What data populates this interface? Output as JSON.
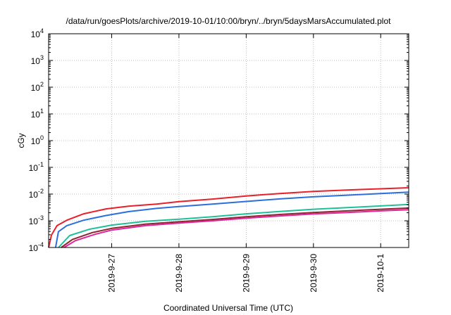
{
  "chart_data": {
    "type": "line",
    "title": "/data/run/goesPlots/archive/2019-10-01/10:00/bryn/../bryn/5daysMarsAccumulated.plot",
    "xlabel": "Coordinated Universal Time (UTC)",
    "ylabel": "cGy",
    "x_type": "date",
    "xlim": [
      "2019-09-26T01:30",
      "2019-10-01T10:00"
    ],
    "x_ticks": [
      {
        "value": "2019-09-27T00:00",
        "label": "2019-9-27"
      },
      {
        "value": "2019-09-28T00:00",
        "label": "2019-9-28"
      },
      {
        "value": "2019-09-29T00:00",
        "label": "2019-9-29"
      },
      {
        "value": "2019-09-30T00:00",
        "label": "2019-9-30"
      },
      {
        "value": "2019-10-01T00:00",
        "label": "2019-10-1"
      }
    ],
    "y_scale": "log",
    "ylim": [
      0.0001,
      10000
    ],
    "y_ticks": [
      {
        "value": 0.0001,
        "base": "10",
        "exp": "-4"
      },
      {
        "value": 0.001,
        "base": "10",
        "exp": "-3"
      },
      {
        "value": 0.01,
        "base": "10",
        "exp": "-2"
      },
      {
        "value": 0.1,
        "base": "10",
        "exp": "-1"
      },
      {
        "value": 1,
        "base": "10",
        "exp": "0"
      },
      {
        "value": 10,
        "base": "10",
        "exp": "1"
      },
      {
        "value": 100,
        "base": "10",
        "exp": "2"
      },
      {
        "value": 1000,
        "base": "10",
        "exp": "3"
      },
      {
        "value": 10000,
        "base": "10",
        "exp": "4"
      }
    ],
    "grid": true,
    "legend": "none",
    "series": [
      {
        "color": "#e8202a",
        "points": [
          [
            "2019-09-26T01:30",
            0.0001
          ],
          [
            "2019-09-26T02:30",
            0.00029
          ],
          [
            "2019-09-26T04:30",
            0.00066
          ],
          [
            "2019-09-26T08:00",
            0.00105
          ],
          [
            "2019-09-26T14:00",
            0.00182
          ],
          [
            "2019-09-26T22:00",
            0.00278
          ],
          [
            "2019-09-27T06:00",
            0.0035
          ],
          [
            "2019-09-27T16:00",
            0.0042
          ],
          [
            "2019-09-28T00:00",
            0.0052
          ],
          [
            "2019-09-28T12:00",
            0.0065
          ],
          [
            "2019-09-29T00:00",
            0.0085
          ],
          [
            "2019-09-29T12:00",
            0.0105
          ],
          [
            "2019-09-30T00:00",
            0.0125
          ],
          [
            "2019-09-30T12:00",
            0.0142
          ],
          [
            "2019-10-01T00:00",
            0.0158
          ],
          [
            "2019-10-01T10:00",
            0.0172
          ]
        ]
      },
      {
        "color": "#2a6fdb",
        "points": [
          [
            "2019-09-26T04:00",
            0.0001
          ],
          [
            "2019-09-26T05:00",
            0.00039
          ],
          [
            "2019-09-26T08:00",
            0.00066
          ],
          [
            "2019-09-26T14:00",
            0.00105
          ],
          [
            "2019-09-26T22:00",
            0.00158
          ],
          [
            "2019-09-27T06:00",
            0.0022
          ],
          [
            "2019-09-27T16:00",
            0.0029
          ],
          [
            "2019-09-28T00:00",
            0.0034
          ],
          [
            "2019-09-28T12:00",
            0.0042
          ],
          [
            "2019-09-29T00:00",
            0.0053
          ],
          [
            "2019-09-29T12:00",
            0.0066
          ],
          [
            "2019-09-30T00:00",
            0.0079
          ],
          [
            "2019-09-30T12:00",
            0.0091
          ],
          [
            "2019-10-01T00:00",
            0.0105
          ],
          [
            "2019-10-01T10:00",
            0.0118
          ]
        ]
      },
      {
        "color": "#1fbf9a",
        "points": [
          [
            "2019-09-26T05:00",
            0.0001
          ],
          [
            "2019-09-26T09:00",
            0.00028
          ],
          [
            "2019-09-26T16:00",
            0.00048
          ],
          [
            "2019-09-27T00:00",
            0.00069
          ],
          [
            "2019-09-27T12:00",
            0.00095
          ],
          [
            "2019-09-28T00:00",
            0.00115
          ],
          [
            "2019-09-28T12:00",
            0.00142
          ],
          [
            "2019-09-29T00:00",
            0.00182
          ],
          [
            "2019-09-29T12:00",
            0.00223
          ],
          [
            "2019-09-30T00:00",
            0.0027
          ],
          [
            "2019-09-30T12:00",
            0.0031
          ],
          [
            "2019-10-01T00:00",
            0.0036
          ],
          [
            "2019-10-01T10:00",
            0.0041
          ]
        ]
      },
      {
        "color": "#8a2830",
        "points": [
          [
            "2019-09-26T06:00",
            0.0001
          ],
          [
            "2019-09-26T10:00",
            0.0002
          ],
          [
            "2019-09-26T17:00",
            0.00036
          ],
          [
            "2019-09-27T00:00",
            0.00052
          ],
          [
            "2019-09-27T12:00",
            0.00075
          ],
          [
            "2019-09-28T00:00",
            0.00092
          ],
          [
            "2019-09-28T12:00",
            0.00112
          ],
          [
            "2019-09-29T00:00",
            0.00142
          ],
          [
            "2019-09-29T12:00",
            0.00172
          ],
          [
            "2019-09-30T00:00",
            0.00205
          ],
          [
            "2019-09-30T12:00",
            0.00235
          ],
          [
            "2019-10-01T00:00",
            0.0027
          ],
          [
            "2019-10-01T10:00",
            0.003
          ]
        ]
      },
      {
        "color": "#e0249a",
        "points": [
          [
            "2019-09-26T07:00",
            0.0001
          ],
          [
            "2019-09-26T11:00",
            0.00018
          ],
          [
            "2019-09-26T18:00",
            0.00031
          ],
          [
            "2019-09-27T00:00",
            0.00045
          ],
          [
            "2019-09-27T12:00",
            0.00066
          ],
          [
            "2019-09-28T00:00",
            0.00082
          ],
          [
            "2019-09-28T12:00",
            0.001
          ],
          [
            "2019-09-29T00:00",
            0.00125
          ],
          [
            "2019-09-29T12:00",
            0.00152
          ],
          [
            "2019-09-30T00:00",
            0.0018
          ],
          [
            "2019-09-30T12:00",
            0.00205
          ],
          [
            "2019-10-01T00:00",
            0.00235
          ],
          [
            "2019-10-01T10:00",
            0.0026
          ]
        ]
      }
    ]
  }
}
